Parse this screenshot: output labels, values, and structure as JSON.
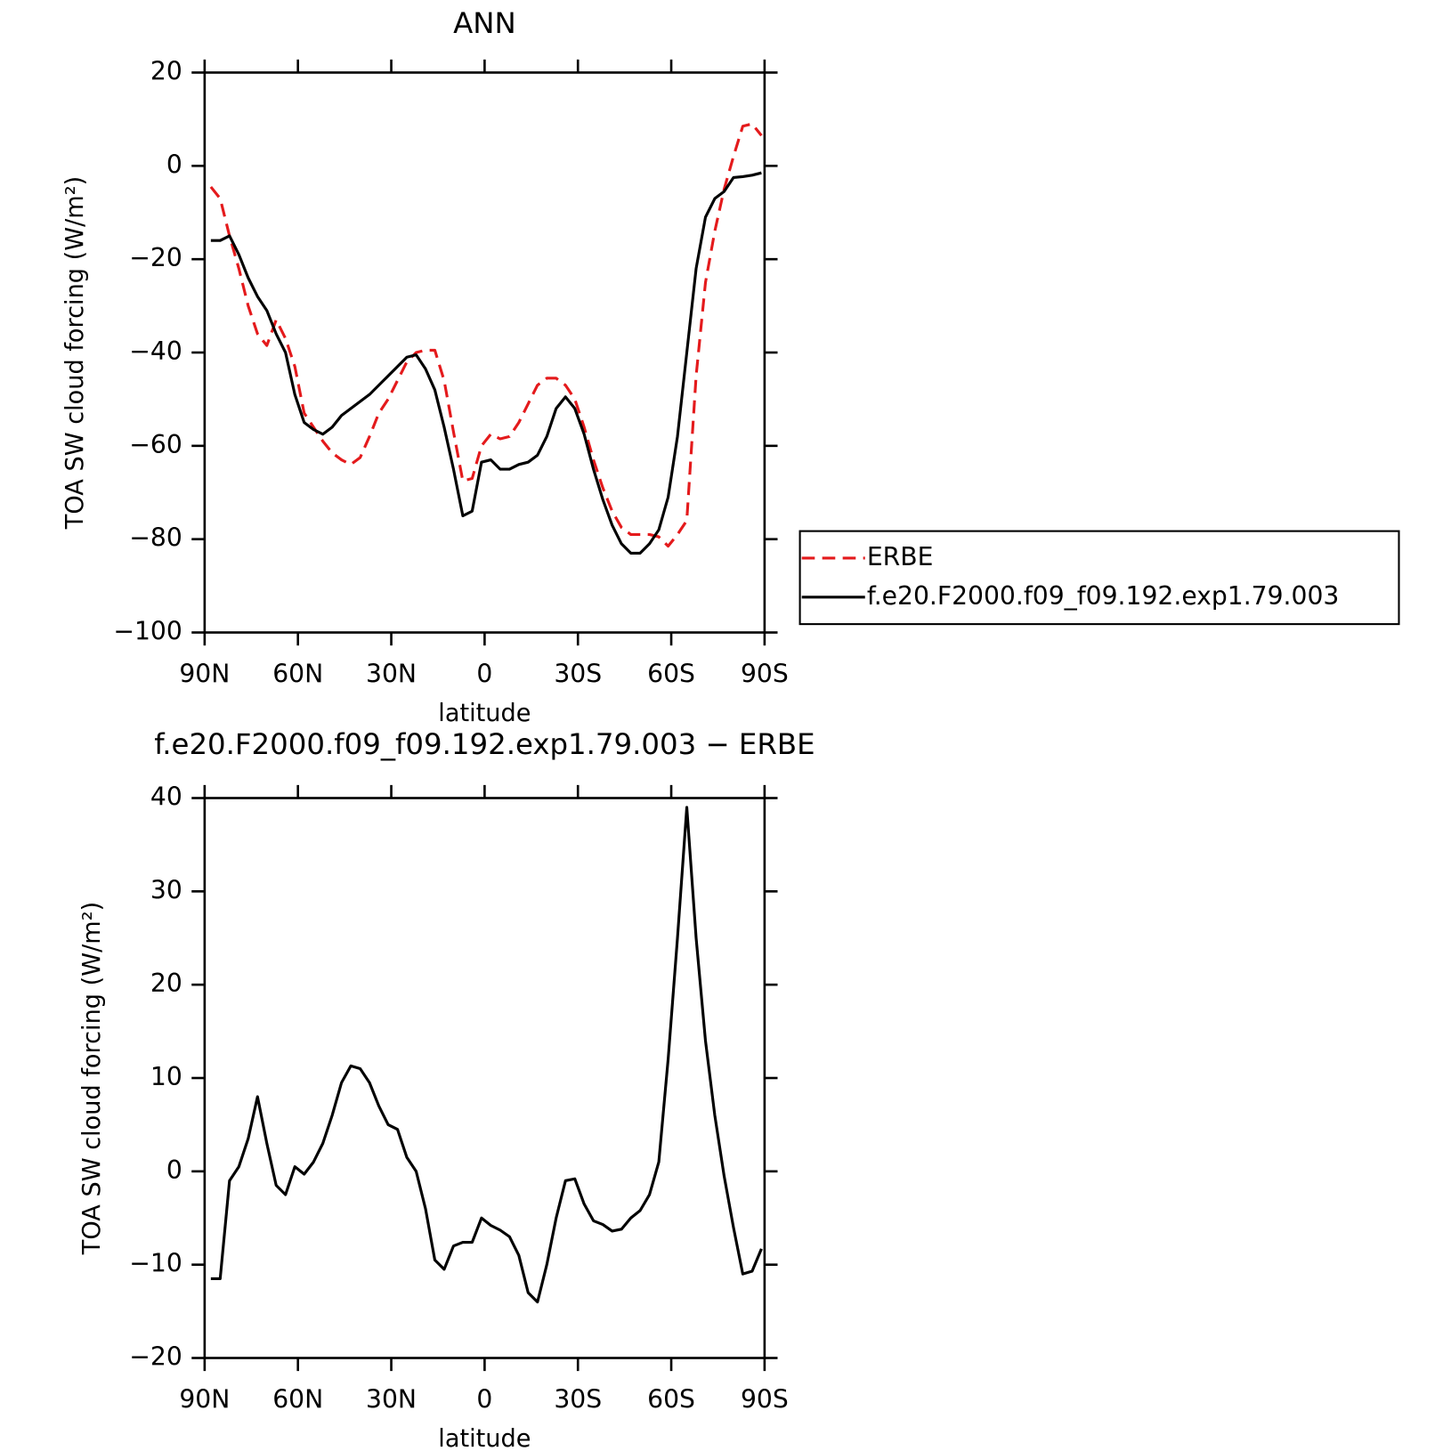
{
  "chart_data": [
    {
      "type": "line",
      "title": "ANN",
      "xlabel": "latitude",
      "ylabel": "TOA SW cloud forcing (W/m²)",
      "x": [
        88,
        85,
        82,
        79,
        76,
        73,
        70,
        67,
        64,
        61,
        58,
        55,
        52,
        49,
        46,
        43,
        40,
        37,
        34,
        31,
        28,
        25,
        22,
        19,
        16,
        13,
        10,
        7,
        4,
        1,
        -2,
        -5,
        -8,
        -11,
        -14,
        -17,
        -20,
        -23,
        -26,
        -29,
        -32,
        -35,
        -38,
        -41,
        -44,
        -47,
        -50,
        -53,
        -56,
        -59,
        -62,
        -65,
        -68,
        -71,
        -74,
        -77,
        -80,
        -83,
        -86,
        -89
      ],
      "series": [
        {
          "name": "ERBE",
          "color": "#e41a1c",
          "line_style": "dashed",
          "values": [
            -4.5,
            -7,
            -15,
            -22,
            -30,
            -36,
            -38.5,
            -33,
            -37,
            -43,
            -53,
            -56,
            -59,
            -61.5,
            -63,
            -64,
            -62.5,
            -58,
            -53,
            -50,
            -46,
            -42,
            -40,
            -39.5,
            -39.5,
            -46,
            -57,
            -67.5,
            -67,
            -60,
            -57.5,
            -58.5,
            -58,
            -55,
            -51,
            -47,
            -45.5,
            -45.5,
            -47,
            -50,
            -56,
            -63,
            -69,
            -74,
            -77.5,
            -79,
            -79,
            -79,
            -79.5,
            -81.5,
            -79,
            -76,
            -45,
            -25,
            -14,
            -5,
            2,
            8.5,
            9,
            6.5
          ]
        },
        {
          "name": "f.e20.F2000.f09_f09.192.exp1.79.003",
          "color": "#000000",
          "line_style": "solid",
          "values": [
            -16,
            -16,
            -15,
            -19,
            -24,
            -28,
            -31,
            -36,
            -40,
            -49,
            -55,
            -56.5,
            -57.5,
            -56,
            -53.5,
            -52,
            -50.5,
            -49,
            -47,
            -45,
            -43,
            -41,
            -40.5,
            -43.5,
            -48,
            -56,
            -65,
            -75,
            -74,
            -63.5,
            -63,
            -65,
            -65,
            -64,
            -63.5,
            -62,
            -58,
            -52,
            -49.5,
            -52,
            -57.5,
            -65,
            -71.5,
            -77,
            -81,
            -83,
            -83,
            -81,
            -78,
            -71,
            -58,
            -40,
            -22,
            -11,
            -7,
            -5.5,
            -2.5,
            -2.3,
            -2,
            -1.5
          ]
        }
      ],
      "xlim": [
        90,
        -90
      ],
      "xticks": [
        {
          "value": 90,
          "label": "90N"
        },
        {
          "value": 60,
          "label": "60N"
        },
        {
          "value": 30,
          "label": "30N"
        },
        0,
        {
          "value": -30,
          "label": "30S"
        },
        {
          "value": -60,
          "label": "60S"
        },
        {
          "value": -90,
          "label": "90S"
        }
      ],
      "ylim": [
        -100,
        20
      ],
      "yticks": [
        {
          "value": -100,
          "label": "−100"
        },
        {
          "value": -80,
          "label": "−80"
        },
        {
          "value": -60,
          "label": "−60"
        },
        {
          "value": -40,
          "label": "−40"
        },
        {
          "value": -20,
          "label": "−20"
        },
        0,
        20
      ],
      "legend": "right"
    },
    {
      "type": "line",
      "title": "f.e20.F2000.f09_f09.192.exp1.79.003 − ERBE",
      "xlabel": "latitude",
      "ylabel": "TOA SW cloud forcing (W/m²)",
      "x": [
        88,
        85,
        82,
        79,
        76,
        73,
        70,
        67,
        64,
        61,
        58,
        55,
        52,
        49,
        46,
        43,
        40,
        37,
        34,
        31,
        28,
        25,
        22,
        19,
        16,
        13,
        10,
        7,
        4,
        1,
        -2,
        -5,
        -8,
        -11,
        -14,
        -17,
        -20,
        -23,
        -26,
        -29,
        -32,
        -35,
        -38,
        -41,
        -44,
        -47,
        -50,
        -53,
        -56,
        -59,
        -62,
        -65,
        -68,
        -71,
        -74,
        -77,
        -80,
        -83,
        -86,
        -89
      ],
      "series": [
        {
          "color": "#000000",
          "line_style": "solid",
          "values": [
            -11.5,
            -11.5,
            -1,
            0.5,
            3.5,
            8,
            3,
            -1.5,
            -2.5,
            0.5,
            -0.3,
            1,
            3,
            6,
            9.5,
            11.3,
            11,
            9.5,
            7,
            5,
            4.5,
            1.5,
            0,
            -4,
            -9.5,
            -10.5,
            -8,
            -7.6,
            -7.6,
            -5,
            -5.8,
            -6.3,
            -7,
            -9,
            -13,
            -14,
            -10,
            -5,
            -1,
            -0.8,
            -3.5,
            -5.3,
            -5.7,
            -6.4,
            -6.2,
            -5,
            -4.2,
            -2.5,
            1,
            12,
            25,
            39,
            25,
            14,
            6,
            -0.5,
            -6,
            -11,
            -10.7,
            -8.3
          ]
        }
      ],
      "xlim": [
        90,
        -90
      ],
      "xticks": [
        {
          "value": 90,
          "label": "90N"
        },
        {
          "value": 60,
          "label": "60N"
        },
        {
          "value": 30,
          "label": "30N"
        },
        0,
        {
          "value": -30,
          "label": "30S"
        },
        {
          "value": -60,
          "label": "60S"
        },
        {
          "value": -90,
          "label": "90S"
        }
      ],
      "ylim": [
        -20,
        40
      ],
      "yticks": [
        {
          "value": -20,
          "label": "−20"
        },
        {
          "value": -10,
          "label": "−10"
        },
        0,
        10,
        20,
        30,
        40
      ]
    }
  ]
}
